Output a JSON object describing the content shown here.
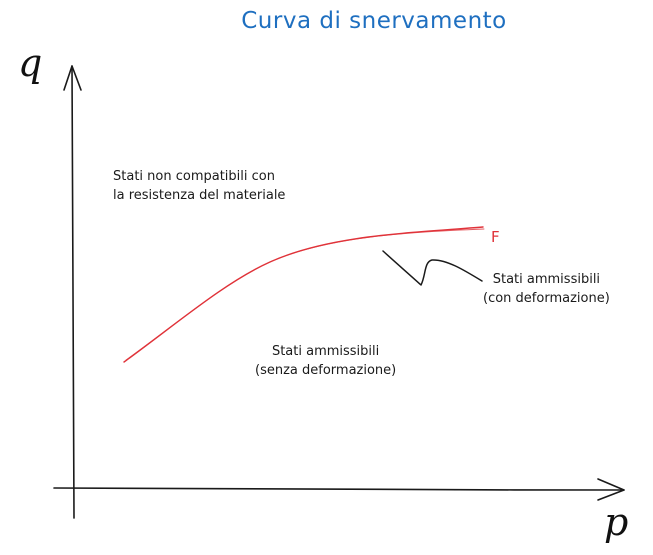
{
  "title": "Curva di snervamento",
  "axes": {
    "vertical": "q",
    "horizontal": "p"
  },
  "curve": {
    "label": "F",
    "color": "#e0333a"
  },
  "regions": {
    "upper": {
      "line1": "Stati non compatibili con",
      "line2": "la resistenza del materiale"
    },
    "lower": {
      "line1": "Stati ammissibili",
      "line2": "(senza deformazione)"
    },
    "on_curve": {
      "line1": "Stati ammissibili",
      "line2": "(con deformazione)"
    }
  },
  "colors": {
    "title": "#1e6fc0",
    "ink": "#1a1a1a"
  }
}
